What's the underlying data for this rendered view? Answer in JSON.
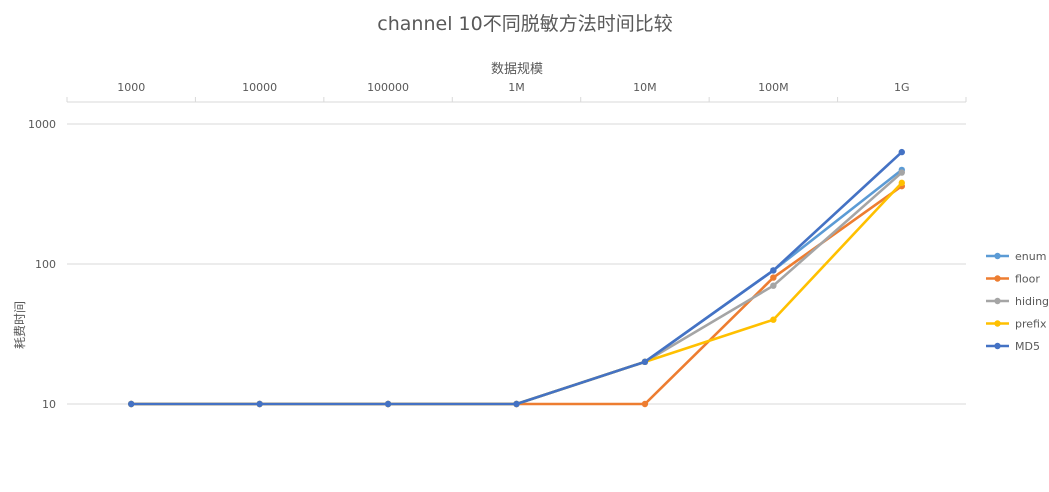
{
  "chart_data": {
    "type": "line",
    "title": "channel 10不同脱敏方法时间比较",
    "xlabel": "数据规模",
    "ylabel": "耗费时间",
    "categories": [
      "1000",
      "10000",
      "100000",
      "1M",
      "10M",
      "100M",
      "1G"
    ],
    "x_axis_position": "top",
    "y_scale": "log",
    "yticks": [
      "10",
      "100",
      "1000"
    ],
    "ylim": [
      10,
      1000
    ],
    "grid": true,
    "legend_position": "right",
    "series": [
      {
        "name": "enum",
        "color": "#5b9bd5",
        "values": [
          10,
          10,
          10,
          10,
          20,
          90,
          470
        ]
      },
      {
        "name": "floor",
        "color": "#ed7d31",
        "values": [
          10,
          10,
          10,
          10,
          10,
          80,
          360
        ]
      },
      {
        "name": "hiding",
        "color": "#a5a5a5",
        "values": [
          10,
          10,
          10,
          10,
          20,
          70,
          450
        ]
      },
      {
        "name": "prefix",
        "color": "#ffc000",
        "values": [
          10,
          10,
          10,
          10,
          20,
          40,
          380
        ]
      },
      {
        "name": "MD5",
        "color": "#4472c4",
        "values": [
          10,
          10,
          10,
          10,
          20,
          90,
          630
        ]
      }
    ]
  }
}
